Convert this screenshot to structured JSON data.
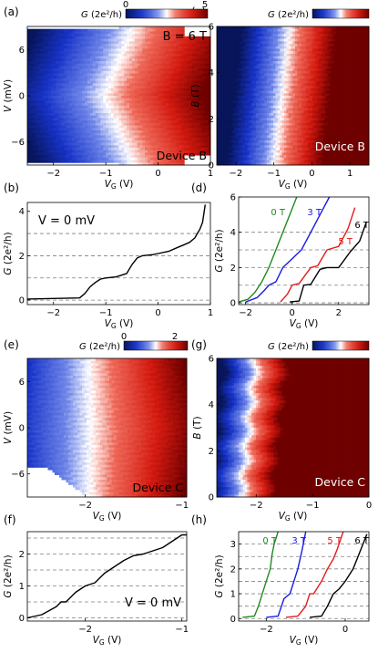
{
  "colors": {
    "cmap_low": "#0b1a6b",
    "cmap_mid": "#ffffff",
    "cmap_high": "#7a0000",
    "trace": "#000000",
    "field_0T": "#1f8a1f",
    "field_3T": "#1a1ae6",
    "field_5T": "#e61a1a",
    "field_6T": "#000000",
    "guide_line": "#808080"
  },
  "chart_data": [
    {
      "panel": "(a)",
      "type": "heatmap",
      "colorbar_label": "G (2e²/h)",
      "colorbar_ticks": [
        "0",
        "5"
      ],
      "clim": [
        0,
        5
      ],
      "xlabel": "VG (V)",
      "ylabel": "V (mV)",
      "xlim": [
        -2.5,
        1
      ],
      "ylim": [
        -9,
        9
      ],
      "xticks": [
        "-2",
        "-1",
        "0",
        "1"
      ],
      "yticks": [
        "-6",
        "0",
        "6"
      ],
      "annotations": [
        "B = 6 T",
        "Device B"
      ]
    },
    {
      "panel": "(b)",
      "type": "line",
      "xlabel": "VG (V)",
      "ylabel": "G (2e²/h)",
      "xlim": [
        -2.5,
        1
      ],
      "ylim": [
        -0.2,
        4.4
      ],
      "xticks": [
        "-2",
        "-1",
        "0",
        "1"
      ],
      "yticks": [
        "0",
        "2",
        "4"
      ],
      "guide_lines": [
        0,
        1,
        2,
        3
      ],
      "annotations": [
        "V = 0 mV"
      ],
      "series": [
        {
          "x": [
            -2.5,
            -1.5,
            -1.4,
            -1.3,
            -1.2,
            -1.1,
            -1.0,
            -0.8,
            -0.6,
            -0.5,
            -0.4,
            -0.3,
            -0.1,
            0.0,
            0.2,
            0.4,
            0.5,
            0.6,
            0.7,
            0.8,
            0.85,
            0.9
          ],
          "y": [
            0.05,
            0.1,
            0.3,
            0.6,
            0.8,
            0.95,
            1.0,
            1.05,
            1.2,
            1.6,
            1.9,
            2.0,
            2.05,
            2.1,
            2.2,
            2.4,
            2.5,
            2.6,
            2.8,
            3.2,
            3.5,
            4.3
          ]
        }
      ]
    },
    {
      "panel": "(c)",
      "type": "heatmap",
      "colorbar_label": "G (2e²/h)",
      "xlabel": "VG (V)",
      "ylabel": "B (T)",
      "xlim": [
        -2.5,
        1.5
      ],
      "ylim": [
        0,
        6
      ],
      "xticks": [
        "-2",
        "-1",
        "0",
        "1"
      ],
      "yticks": [
        "0",
        "2",
        "4",
        "6"
      ],
      "annotations": [
        "Device B"
      ]
    },
    {
      "panel": "(d)",
      "type": "line",
      "xlabel": "VG (V)",
      "ylabel": "G (2e²/h)",
      "xlim": [
        -2.3,
        3.3
      ],
      "ylim": [
        -0.1,
        6
      ],
      "xticks": [
        "-2",
        "0",
        "2"
      ],
      "yticks": [
        "0",
        "2",
        "4",
        "6"
      ],
      "guide_lines": [
        0,
        1,
        2,
        3,
        4
      ],
      "series": [
        {
          "name": "0 T",
          "x": [
            -2.3,
            -1.9,
            -1.6,
            -1.3,
            -1.0,
            -0.7,
            -0.4,
            -0.1,
            0.2
          ],
          "y": [
            0.05,
            0.2,
            0.6,
            1.2,
            2.0,
            3.0,
            4.0,
            5.0,
            6.0
          ]
        },
        {
          "name": "3 T",
          "x": [
            -2.0,
            -1.5,
            -1.2,
            -1.0,
            -0.7,
            -0.4,
            0.0,
            0.4,
            0.8,
            1.2,
            1.6
          ],
          "y": [
            0.05,
            0.3,
            0.7,
            1.0,
            1.2,
            2.0,
            2.5,
            3.0,
            4.0,
            5.0,
            6.0
          ]
        },
        {
          "name": "5 T",
          "x": [
            -0.5,
            -0.2,
            0.0,
            0.3,
            0.8,
            1.1,
            1.5,
            2.0,
            2.4,
            2.7
          ],
          "y": [
            0.05,
            0.5,
            1.0,
            1.1,
            2.0,
            2.1,
            3.0,
            3.2,
            4.2,
            5.4
          ]
        },
        {
          "name": "6 T",
          "x": [
            -0.1,
            0.3,
            0.5,
            0.8,
            1.2,
            1.5,
            2.0,
            2.5,
            2.9,
            3.2
          ],
          "y": [
            0.05,
            0.1,
            1.0,
            1.05,
            1.9,
            2.0,
            2.0,
            2.9,
            3.5,
            4.6
          ]
        }
      ]
    },
    {
      "panel": "(e)",
      "type": "heatmap",
      "colorbar_label": "G (2e²/h)",
      "colorbar_ticks": [
        "0",
        "2"
      ],
      "clim": [
        0,
        2.5
      ],
      "xlabel": "VG (V)",
      "ylabel": "V (mV)",
      "xlim": [
        -2.6,
        -0.95
      ],
      "ylim": [
        -9,
        9
      ],
      "xticks": [
        "-2",
        "-1"
      ],
      "yticks": [
        "-6",
        "0",
        "6"
      ],
      "annotations": [
        "Device C"
      ]
    },
    {
      "panel": "(f)",
      "type": "line",
      "xlabel": "VG (V)",
      "ylabel": "G (2e²/h)",
      "xlim": [
        -2.6,
        -0.95
      ],
      "ylim": [
        -0.1,
        2.7
      ],
      "xticks": [
        "-2",
        "-1"
      ],
      "yticks": [
        "0",
        "1",
        "2"
      ],
      "guide_lines": [
        0,
        0.5,
        1,
        1.5,
        2,
        2.5
      ],
      "annotations": [
        "V = 0 mV"
      ],
      "series": [
        {
          "x": [
            -2.6,
            -2.45,
            -2.3,
            -2.25,
            -2.2,
            -2.1,
            -2.0,
            -1.9,
            -1.8,
            -1.75,
            -1.7,
            -1.6,
            -1.5,
            -1.4,
            -1.3,
            -1.2,
            -1.1,
            -1.0,
            -0.95
          ],
          "y": [
            0.0,
            0.1,
            0.35,
            0.5,
            0.5,
            0.8,
            1.0,
            1.1,
            1.4,
            1.5,
            1.6,
            1.8,
            1.95,
            2.0,
            2.1,
            2.2,
            2.4,
            2.6,
            2.6
          ]
        }
      ]
    },
    {
      "panel": "(g)",
      "type": "heatmap",
      "colorbar_label": "G (2e²/h)",
      "xlabel": "VG (V)",
      "ylabel": "B (T)",
      "xlim": [
        -2.7,
        0
      ],
      "ylim": [
        0,
        6
      ],
      "xticks": [
        "-2",
        "-1",
        "0"
      ],
      "yticks": [
        "0",
        "2",
        "4",
        "6"
      ],
      "annotations": [
        "Device C"
      ]
    },
    {
      "panel": "(h)",
      "type": "line",
      "xlabel": "VG (V)",
      "ylabel": "G (2e²/h)",
      "xlim": [
        -2.7,
        0.6
      ],
      "ylim": [
        -0.1,
        3.5
      ],
      "xticks": [
        "-2",
        "0"
      ],
      "yticks": [
        "0",
        "1",
        "2",
        "3"
      ],
      "guide_lines": [
        0,
        0.5,
        1,
        1.5,
        2,
        2.5,
        3
      ],
      "series": [
        {
          "name": "0 T",
          "x": [
            -2.6,
            -2.3,
            -2.2,
            -2.1,
            -2.0,
            -1.9,
            -1.85,
            -1.8,
            -1.7
          ],
          "y": [
            0.05,
            0.1,
            0.5,
            1.0,
            1.5,
            2.0,
            2.6,
            3.0,
            3.5
          ]
        },
        {
          "name": "3 T",
          "x": [
            -2.0,
            -1.7,
            -1.55,
            -1.4,
            -1.3,
            -1.2,
            -1.1,
            -1.0
          ],
          "y": [
            0.05,
            0.1,
            0.8,
            1.0,
            1.5,
            2.0,
            2.7,
            3.5
          ]
        },
        {
          "name": "5 T",
          "x": [
            -1.5,
            -1.2,
            -1.0,
            -0.9,
            -0.8,
            -0.6,
            -0.45,
            -0.3,
            -0.2,
            -0.05
          ],
          "y": [
            0.05,
            0.1,
            0.5,
            1.0,
            1.0,
            1.5,
            2.0,
            2.4,
            2.8,
            3.5
          ]
        },
        {
          "name": "6 T",
          "x": [
            -0.9,
            -0.6,
            -0.45,
            -0.3,
            -0.15,
            0.0,
            0.2,
            0.35,
            0.45,
            0.55
          ],
          "y": [
            0.05,
            0.1,
            0.5,
            1.0,
            1.2,
            1.5,
            2.0,
            2.6,
            3.0,
            3.4
          ]
        }
      ]
    }
  ]
}
